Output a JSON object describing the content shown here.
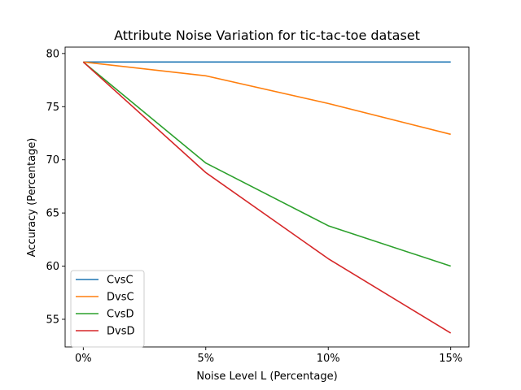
{
  "chart_data": {
    "type": "line",
    "title": "Attribute Noise Variation for tic-tac-toe dataset",
    "xlabel": "Noise Level L (Percentage)",
    "ylabel": "Accuracy (Percentage)",
    "categories": [
      "0%",
      "5%",
      "10%",
      "15%"
    ],
    "ylim": [
      52.4,
      80.6
    ],
    "yticks": [
      55,
      60,
      65,
      70,
      75,
      80
    ],
    "grid": false,
    "legend_position": "lower-left",
    "series": [
      {
        "name": "CvsC",
        "color": "#1f77b4",
        "values": [
          79.2,
          79.2,
          79.2,
          79.2
        ]
      },
      {
        "name": "DvsC",
        "color": "#ff7f0e",
        "values": [
          79.2,
          77.9,
          75.3,
          72.4
        ]
      },
      {
        "name": "CvsD",
        "color": "#2ca02c",
        "values": [
          79.2,
          69.7,
          63.8,
          60.0
        ]
      },
      {
        "name": "DvsD",
        "color": "#d62728",
        "values": [
          79.2,
          68.8,
          60.7,
          53.7
        ]
      }
    ]
  }
}
